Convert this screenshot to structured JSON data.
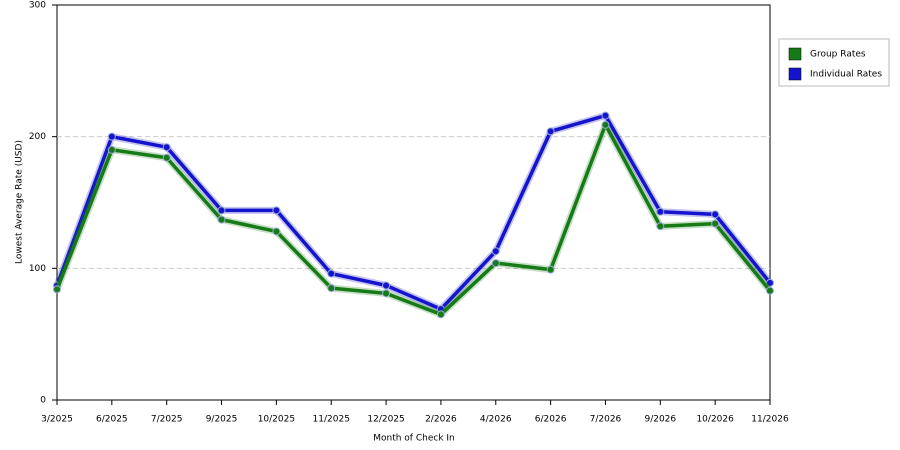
{
  "chart_data": {
    "type": "line",
    "x_label": "Month of Check In",
    "y_label": "Lowest Average Rate (USD)",
    "categories": [
      "3/2025",
      "6/2025",
      "7/2025",
      "9/2025",
      "10/2025",
      "11/2025",
      "12/2025",
      "2/2026",
      "4/2026",
      "6/2026",
      "7/2026",
      "9/2026",
      "10/2026",
      "11/2026"
    ],
    "series": [
      {
        "name": "Group Rates",
        "color": "#167a16",
        "values": [
          84,
          190,
          184,
          137,
          128,
          85,
          81,
          65,
          104,
          99,
          209,
          132,
          134,
          83
        ]
      },
      {
        "name": "Individual Rates",
        "color": "#1414cc",
        "values": [
          87,
          200,
          192,
          144,
          144,
          96,
          87,
          69,
          113,
          204,
          216,
          143,
          141,
          89
        ]
      }
    ],
    "ylim": [
      0,
      300
    ],
    "yticks": [
      0,
      100,
      200,
      300
    ],
    "grid": true,
    "legend": "right"
  }
}
